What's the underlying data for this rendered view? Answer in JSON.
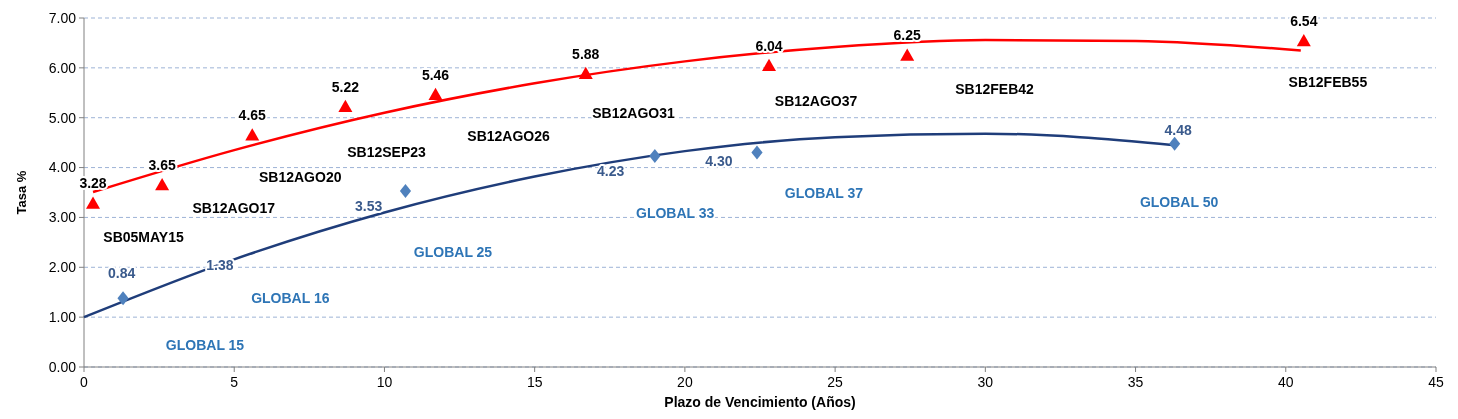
{
  "chart_data": {
    "type": "scatter",
    "xlabel": "Plazo de Vencimiento  (Años)",
    "ylabel": "Tasa %",
    "xlim": [
      0,
      45
    ],
    "xticks": [
      0,
      5,
      10,
      15,
      20,
      25,
      30,
      35,
      40,
      45
    ],
    "ylim": [
      0,
      7
    ],
    "yticks": [
      {
        "value": 0,
        "label": "0.00"
      },
      {
        "value": 1,
        "label": "1.00"
      },
      {
        "value": 2,
        "label": "2.00"
      },
      {
        "value": 3,
        "label": "3.00"
      },
      {
        "value": 4,
        "label": "4.00"
      },
      {
        "value": 5,
        "label": "5.00"
      },
      {
        "value": 6,
        "label": "6.00"
      },
      {
        "value": 7,
        "label": "7.00"
      }
    ],
    "grid": "y",
    "series": [
      {
        "type": "line",
        "color": "#ff0000",
        "marker": "none",
        "line_style": "solid",
        "x": [
          0.3,
          5,
          10,
          15,
          20,
          25,
          30,
          35,
          40.5
        ],
        "values": [
          3.51,
          4.35,
          5.1,
          5.69,
          6.13,
          6.42,
          6.56,
          6.54,
          6.35
        ]
      },
      {
        "type": "line",
        "color": "#1f3d7a",
        "marker": "none",
        "line_style": "solid",
        "x": [
          0,
          5,
          10,
          15,
          20,
          25,
          30,
          36.3
        ],
        "values": [
          1.0,
          2.16,
          3.1,
          3.82,
          4.33,
          4.61,
          4.68,
          4.45
        ]
      },
      {
        "color": "#ff0000",
        "marker": "triangle",
        "x": [
          0.3,
          2.6,
          5.6,
          8.7,
          11.7,
          16.7,
          22.8,
          27.4,
          40.6
        ],
        "values": [
          3.28,
          3.65,
          4.65,
          5.22,
          5.46,
          5.88,
          6.04,
          6.25,
          6.54
        ],
        "value_labels": [
          "3.28",
          "3.65",
          "4.65",
          "5.22",
          "5.46",
          "5.88",
          "6.04",
          "6.25",
          "6.54"
        ]
      },
      {
        "color": "#4f81bd",
        "marker": "diamond",
        "x": [
          1.3,
          10.7,
          19.0,
          22.4,
          36.3
        ],
        "values": [
          1.38,
          3.53,
          4.23,
          4.3,
          4.48
        ]
      }
    ],
    "annotations": [
      "SB05MAY15",
      "SB12AGO17",
      "SB12AGO20",
      "SB12SEP23",
      "SB12AGO26",
      "SB12AGO31",
      "SB12AGO37",
      "SB12FEB42",
      "SB12FEB55",
      "GLOBAL 15",
      "GLOBAL 16",
      "GLOBAL 25",
      "GLOBAL 33",
      "GLOBAL 37",
      "GLOBAL 50",
      "0.84",
      "1.38",
      "3.53",
      "4.23",
      "4.30",
      "4.48"
    ]
  }
}
